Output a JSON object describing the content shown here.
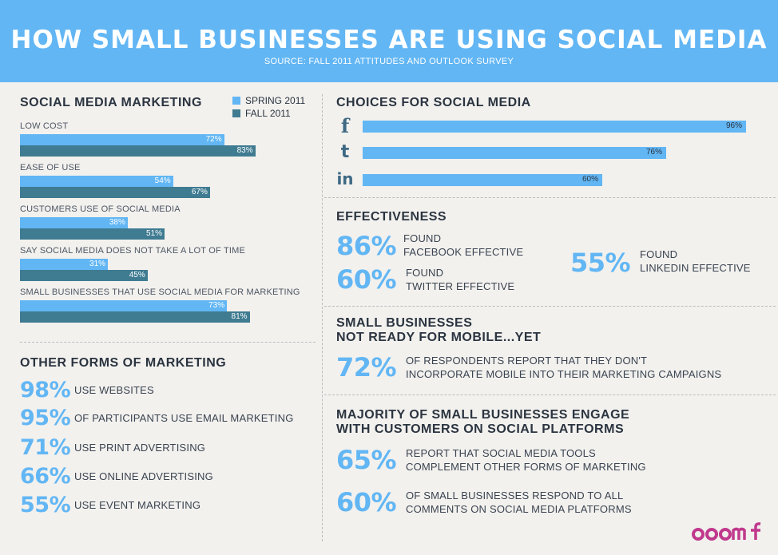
{
  "header": {
    "title": "HOW SMALL BUSINESSES ARE USING SOCIAL MEDIA",
    "source": "SOURCE: FALL 2011 ATTITUDES AND OUTLOOK SURVEY"
  },
  "colors": {
    "spring": "#62b6f4",
    "fall": "#3f7b91",
    "accent": "#62b6f4",
    "logo": "#c0398c"
  },
  "smm": {
    "title": "SOCIAL MEDIA MARKETING",
    "legend_spring": "SPRING 2011",
    "legend_fall": "FALL 2011"
  },
  "chart_data": [
    {
      "type": "bar",
      "title": "SOCIAL MEDIA MARKETING",
      "orientation": "horizontal",
      "categories": [
        "LOW COST",
        "EASE OF USE",
        "CUSTOMERS USE OF SOCIAL MEDIA",
        "SAY SOCIAL MEDIA DOES NOT TAKE A LOT OF TIME",
        "SMALL BUSINESSES THAT USE SOCIAL MEDIA FOR MARKETING"
      ],
      "series": [
        {
          "name": "SPRING 2011",
          "values": [
            72,
            54,
            38,
            31,
            73
          ],
          "labels": [
            "72%",
            "54%",
            "38%",
            "31%",
            "73%"
          ]
        },
        {
          "name": "FALL 2011",
          "values": [
            83,
            67,
            51,
            45,
            81
          ],
          "labels": [
            "83%",
            "67%",
            "51%",
            "45%",
            "81%"
          ]
        }
      ],
      "xlim": [
        0,
        100
      ],
      "legend": "top-right"
    },
    {
      "type": "bar",
      "title": "CHOICES FOR SOCIAL MEDIA",
      "orientation": "horizontal",
      "categories": [
        "facebook",
        "twitter",
        "linkedin"
      ],
      "values": [
        96,
        76,
        60
      ],
      "labels": [
        "96%",
        "76%",
        "60%"
      ],
      "xlim": [
        0,
        100
      ]
    }
  ],
  "choices": {
    "title": "CHOICES FOR SOCIAL MEDIA",
    "icons": [
      "facebook-icon",
      "twitter-icon",
      "linkedin-icon"
    ]
  },
  "effectiveness": {
    "title": "EFFECTIVENESS",
    "items": [
      {
        "pct": "86%",
        "line1": "FOUND",
        "line2": "FACEBOOK EFFECTIVE"
      },
      {
        "pct": "60%",
        "line1": "FOUND",
        "line2": "TWITTER EFFECTIVE"
      },
      {
        "pct": "55%",
        "line1": "FOUND",
        "line2": "LINKEDIN EFFECTIVE"
      }
    ]
  },
  "mobile": {
    "title1": "SMALL BUSINESSES",
    "title2": "NOT READY FOR MOBILE...YET",
    "pct": "72%",
    "line1": "OF RESPONDENTS REPORT THAT THEY DON'T",
    "line2": "INCORPORATE MOBILE INTO THEIR MARKETING CAMPAIGNS"
  },
  "engage": {
    "title1": "MAJORITY OF SMALL BUSINESSES ENGAGE",
    "title2": "WITH CUSTOMERS ON SOCIAL PLATFORMS",
    "items": [
      {
        "pct": "65%",
        "line1": "REPORT THAT SOCIAL MEDIA TOOLS",
        "line2": "COMPLEMENT OTHER FORMS OF MARKETING"
      },
      {
        "pct": "60%",
        "line1": "OF SMALL BUSINESSES RESPOND TO ALL",
        "line2": "COMMENTS ON SOCIAL MEDIA PLATFORMS"
      }
    ]
  },
  "other": {
    "title": "OTHER FORMS OF MARKETING",
    "items": [
      {
        "pct": "98%",
        "text": "USE WEBSITES"
      },
      {
        "pct": "95%",
        "text": "OF PARTICIPANTS USE EMAIL MARKETING"
      },
      {
        "pct": "71%",
        "text": "USE PRINT ADVERTISING"
      },
      {
        "pct": "66%",
        "text": "USE ONLINE ADVERTISING"
      },
      {
        "pct": "55%",
        "text": "USE EVENT MARKETING"
      }
    ]
  },
  "logo": {
    "text": "ooomf"
  }
}
